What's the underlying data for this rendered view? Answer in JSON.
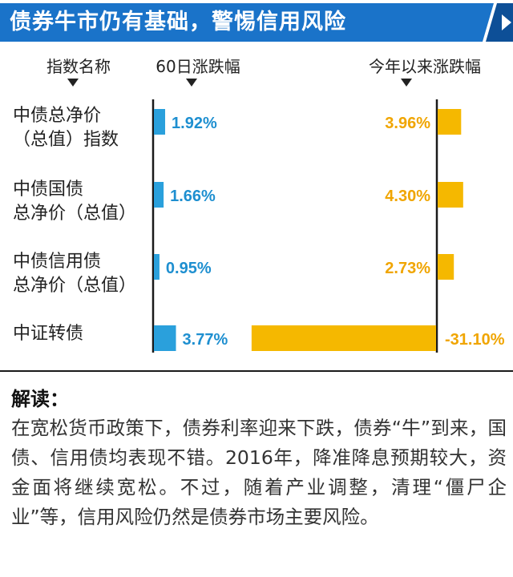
{
  "header": {
    "title": "债券牛市仍有基础，警惕信用风险",
    "colors": {
      "banner": "#1a73c9",
      "banner_edge": "#0d4f97"
    }
  },
  "columns": {
    "name_header": "指数名称",
    "left_header": "60日涨跌幅",
    "right_header": "今年以来涨跌幅"
  },
  "rows": [
    {
      "line1": "中债总净价",
      "line2": "（总值）指数"
    },
    {
      "line1": "中债国债",
      "line2": "总净价（总值）"
    },
    {
      "line1": "中债信用债",
      "line2": "总净价（总值）"
    },
    {
      "line1": "中证转债",
      "line2": ""
    }
  ],
  "chart_data": {
    "type": "bar",
    "orientation": "horizontal",
    "categories": [
      "中债总净价（总值）指数",
      "中债国债总净价（总值）",
      "中债信用债总净价（总值）",
      "中证转债"
    ],
    "series": [
      {
        "name": "60日涨跌幅",
        "values": [
          1.92,
          1.66,
          0.95,
          3.77
        ],
        "labels": [
          "1.92%",
          "1.66%",
          "0.95%",
          "3.77%"
        ],
        "color": "#2aa0dc"
      },
      {
        "name": "今年以来涨跌幅",
        "values": [
          3.96,
          4.3,
          2.73,
          -31.1
        ],
        "labels": [
          "3.96%",
          "4.30%",
          "2.73%",
          "-31.10%"
        ],
        "color": "#f5b800"
      }
    ],
    "label_colors": {
      "60日涨跌幅": "#1e8fd0",
      "今年以来涨跌幅": "#f0a500"
    }
  },
  "commentary": {
    "title": "解读：",
    "body": "在宽松货币政策下，债券利率迎来下跌，债券“牛”到来，国债、信用债均表现不错。2016年，降准降息预期较大，资金面将继续宽松。不过，随着产业调整，清理“僵尸企业”等，信用风险仍然是债券市场主要风险。"
  }
}
